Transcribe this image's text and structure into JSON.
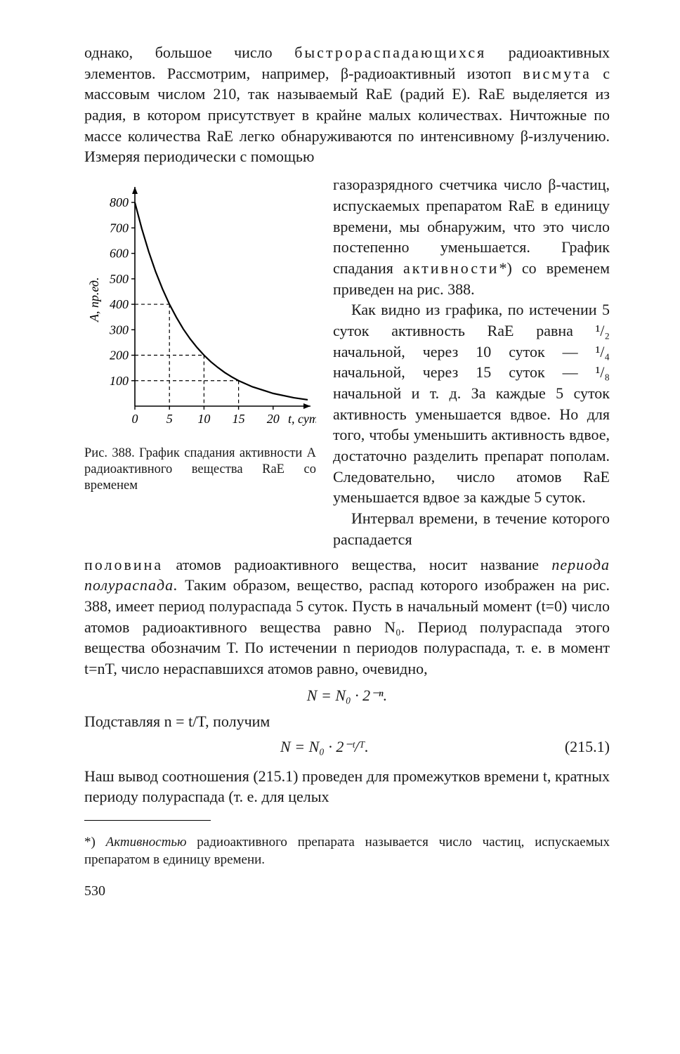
{
  "body": {
    "p1": "однако, большое число ",
    "p1_spaced": "быстрораспадающихся",
    "p1b": " радиоактивных элементов. Рассмотрим, например, β-радио­активный изотоп ",
    "p1_spaced2": "висмута",
    "p1c": " с массовым числом 210, так называемый RaE (радий E). RaE выделяется из радия, в ко­тором присутствует в крайне малых количествах. Ничтож­ные по массе количества RaE легко обнаруживаются по ин­тенсивному β-излучению. Измеряя периодически с помощью",
    "rcol_a": "газоразрядного счетчика чис­ло β-частиц, испускаемых пре­паратом RaE в единицу време­ни, мы обнаружим, что это чис­ло постепенно уменьшается. Гра­фик спадания ",
    "rcol_a_spaced": "активности",
    "rcol_a2": "*) со временем приведен на рис. 388.",
    "rcol_b": "Как видно из графика, по ис­течении 5 суток активность RaE равна  ¹/₂  начальной, через 10 суток — ¹/₄ начальной, через 15 суток — ¹/₈  начальной  и  т. д. За каждые 5 суток активность уменьшается вдвое. Но для то­го, чтобы уменьшить активность вдвое, достаточно разделить пре­парат пополам. Следовательно, число  атомов  RaE  уменьша­ется вдвое за каждые 5 суток.",
    "rcol_c": "Интервал времени, в тече­ние которого распадается ",
    "p2_spaced": "половина",
    "p2": " атомов радиоактивного вещества, носит на­звание ",
    "p2_em": "периода полураспада.",
    "p2b": " Таким образом, вещество, распад которого изображен на рис. 388, имеет период полу­распада 5 суток. Пусть в начальный момент (t=0) число атомов радиоактивного вещества равно N₀. Период полурас­пада этого вещества обозначим T. По истечении n периодов полураспада, т. е. в момент t=nT, число нераспавшихся атомов равно, очевидно,",
    "eq1": "N = N₀ · 2⁻ⁿ.",
    "p3": "Подставляя  n = t/T,  получим",
    "eq2": "N = N₀ · 2⁻ᵗ/ᵀ.",
    "eq2num": "(215.1)",
    "p4": "Наш вывод соотношения (215.1) проведен для промежутков времени t, кратных периоду полураспада (т. е. для целых",
    "footnote_a": "*) ",
    "footnote_em": "Активностью",
    "footnote_b": " радиоактивного препарата называется  число час­тиц, испускаемых препаратом в единицу времени.",
    "pagenum": "530"
  },
  "figure": {
    "caption": "Рис. 388.  График  спадания активности A радиоактивного вещества RaE  со   временем",
    "type": "line",
    "xlabel": "t, сут",
    "ylabel": "A, пр.ед.",
    "xlim": [
      0,
      25
    ],
    "ylim": [
      0,
      850
    ],
    "xticks": [
      0,
      5,
      10,
      15,
      20
    ],
    "xtick_labels": [
      "0",
      "5",
      "10",
      "15",
      "20"
    ],
    "yticks": [
      100,
      200,
      300,
      400,
      500,
      600,
      700,
      800
    ],
    "ytick_labels": [
      "100",
      "200",
      "300",
      "400",
      "500",
      "600",
      "700",
      "800"
    ],
    "curve": [
      [
        0,
        800
      ],
      [
        1,
        697
      ],
      [
        2,
        607
      ],
      [
        3,
        528
      ],
      [
        4,
        460
      ],
      [
        5,
        400
      ],
      [
        6,
        349
      ],
      [
        7,
        303
      ],
      [
        8,
        264
      ],
      [
        9,
        230
      ],
      [
        10,
        200
      ],
      [
        11,
        174
      ],
      [
        12,
        152
      ],
      [
        13,
        132
      ],
      [
        14,
        115
      ],
      [
        15,
        100
      ],
      [
        17,
        76
      ],
      [
        20,
        50
      ],
      [
        23,
        33
      ],
      [
        25,
        25
      ]
    ],
    "guide_y": [
      400,
      200,
      100
    ],
    "guide_x": [
      5,
      10,
      15
    ],
    "line_color": "#000000",
    "axis_color": "#000000",
    "label_fontsize": 18,
    "tick_fontsize": 18,
    "line_width": 2.2,
    "dash": "5,4",
    "background": "#ffffff"
  }
}
